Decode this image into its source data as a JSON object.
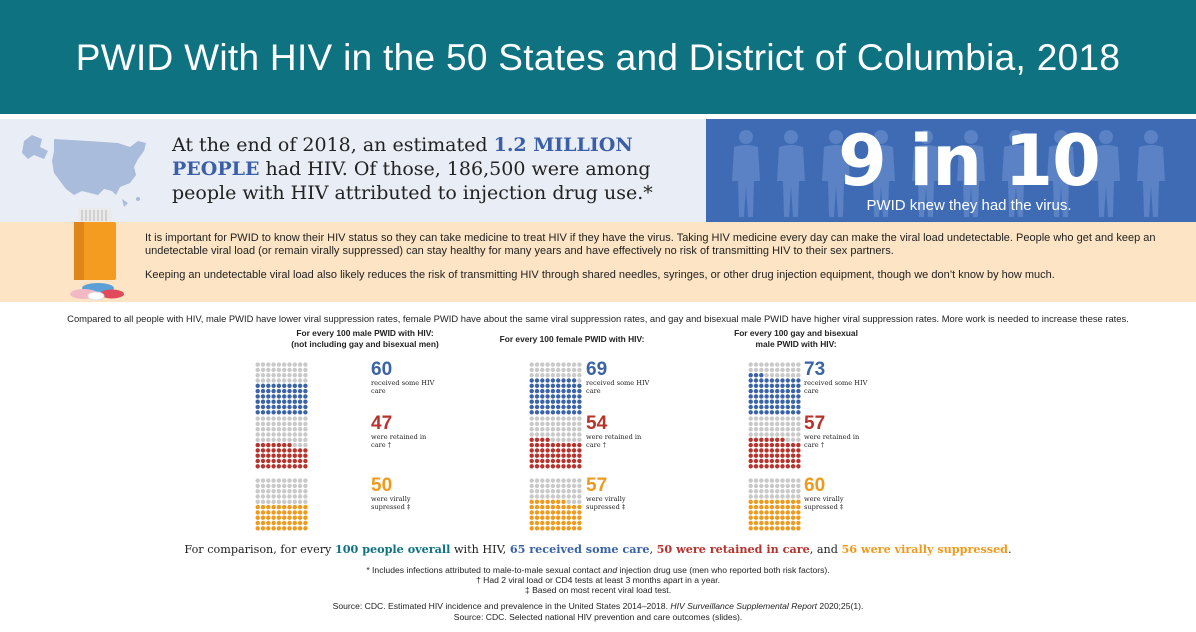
{
  "header": {
    "title": "PWID With HIV in the 50 States and District of Columbia, 2018"
  },
  "stat": {
    "text_before": "At the end of 2018, an estimated ",
    "text_highlight": "1.2 MILLION PEOPLE",
    "text_after": " had HIV. Of those, 186,500 were among people with HIV attributed to injection drug use.*",
    "big_number": "9 in 10",
    "big_caption": "PWID knew they had the virus."
  },
  "info": {
    "p1": "It is important for PWID to know their HIV status so they can take medicine to treat HIV if they have the virus. Taking HIV medicine every day can make the viral load undetectable. People who get and keep an undetectable viral load (or remain virally suppressed) can stay healthy for many years and have effectively no risk of transmitting HIV to their sex partners.",
    "p2": "Keeping an undetectable viral load also likely reduces the risk of transmitting HIV through shared needles, syringes, or other drug injection equipment, though we don’t know by how much."
  },
  "intro": "Compared to all people with HIV,  male PWID have lower viral suppression rates, female PWID have about the same viral suppression rates, and  gay and bisexual male PWID have higher viral suppression rates. More work is needed to increase these rates.",
  "colors": {
    "blue": "#3a63a8",
    "red": "#b7332d",
    "gold": "#ef9a1c",
    "grey": "#c9c9c9",
    "teal": "#0e7280"
  },
  "panels": [
    {
      "heading": "For every 100 male PWID with HIV:\n(not including gay and bisexual men)",
      "care": {
        "value": 60,
        "label": "received some HIV care"
      },
      "retained": {
        "value": 47,
        "label": "were retained in care †"
      },
      "suppressed": {
        "value": 50,
        "label": "were virally supressed ‡"
      }
    },
    {
      "heading": "For every 100 female PWID with HIV:",
      "care": {
        "value": 69,
        "label": "received some HIV care"
      },
      "retained": {
        "value": 54,
        "label": "were retained in care †"
      },
      "suppressed": {
        "value": 57,
        "label": "were virally supressed ‡"
      }
    },
    {
      "heading": "For every 100 gay and bisexual\nmale PWID with HIV:",
      "care": {
        "value": 73,
        "label": "received some HIV care"
      },
      "retained": {
        "value": 57,
        "label": "were retained in care †"
      },
      "suppressed": {
        "value": 60,
        "label": "were virally supressed ‡"
      }
    }
  ],
  "comparison": {
    "prefix": "For comparison, for every ",
    "overall": "100 people overall",
    "mid1": " with HIV,  ",
    "care": "65 received some care",
    "sep1": ", ",
    "retained": "50 were retained in care",
    "sep2": ", and  ",
    "suppressed": "56 were virally suppressed",
    "end": "."
  },
  "footnotes": {
    "star_before": "* Includes infections attributed to male-to-male sexual contact ",
    "star_em": "and",
    "star_after": " injection drug use (men who reported both risk factors).",
    "dagger": "† Had 2 viral load or CD4 tests at least 3 months apart in a year.",
    "ddagger": "‡ Based on most recent viral load test.",
    "source1_before": "Source: CDC. Estimated HIV incidence and prevalence in the United States 2014–2018. ",
    "source1_em": "HIV Surveillance Supplemental Report",
    "source1_after": " 2020;25(1).",
    "source2": "Source: CDC. Selected national HIV prevention and care outcomes (slides)."
  }
}
